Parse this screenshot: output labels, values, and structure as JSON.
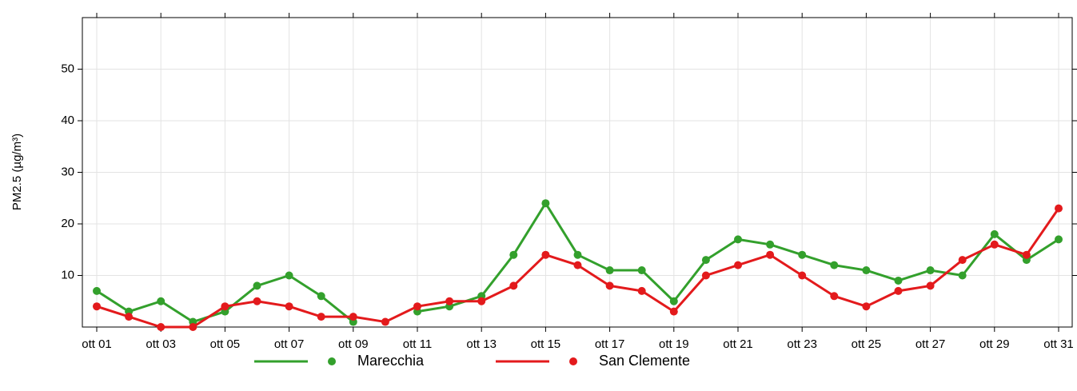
{
  "chart_data": {
    "type": "line",
    "y_label": "PM2.5 (µg/m³)",
    "categories": [
      "ott 01",
      null,
      "ott 03",
      null,
      "ott 05",
      null,
      "ott 07",
      null,
      "ott 09",
      null,
      "ott 11",
      null,
      "ott 13",
      null,
      "ott 15",
      null,
      "ott 17",
      null,
      "ott 19",
      null,
      "ott 21",
      null,
      "ott 23",
      null,
      "ott 25",
      null,
      "ott 27",
      null,
      "ott 29",
      null,
      "ott 31"
    ],
    "series": [
      {
        "name": "Marecchia",
        "color": "#33a02c",
        "values": [
          7,
          3,
          5,
          1,
          3,
          8,
          10,
          6,
          1,
          null,
          3,
          4,
          6,
          14,
          24,
          14,
          11,
          11,
          5,
          13,
          17,
          16,
          14,
          12,
          11,
          9,
          11,
          10,
          18,
          13,
          17
        ]
      },
      {
        "name": "San Clemente",
        "color": "#e31a1c",
        "values": [
          4,
          2,
          0,
          0,
          4,
          5,
          4,
          2,
          2,
          1,
          4,
          5,
          5,
          8,
          14,
          12,
          8,
          7,
          3,
          10,
          12,
          14,
          10,
          6,
          4,
          7,
          8,
          13,
          16,
          14,
          23
        ]
      }
    ],
    "ylim": [
      0,
      60
    ],
    "yticks": [
      10,
      20,
      30,
      40,
      50
    ],
    "grid": true,
    "legend": "bottom"
  }
}
